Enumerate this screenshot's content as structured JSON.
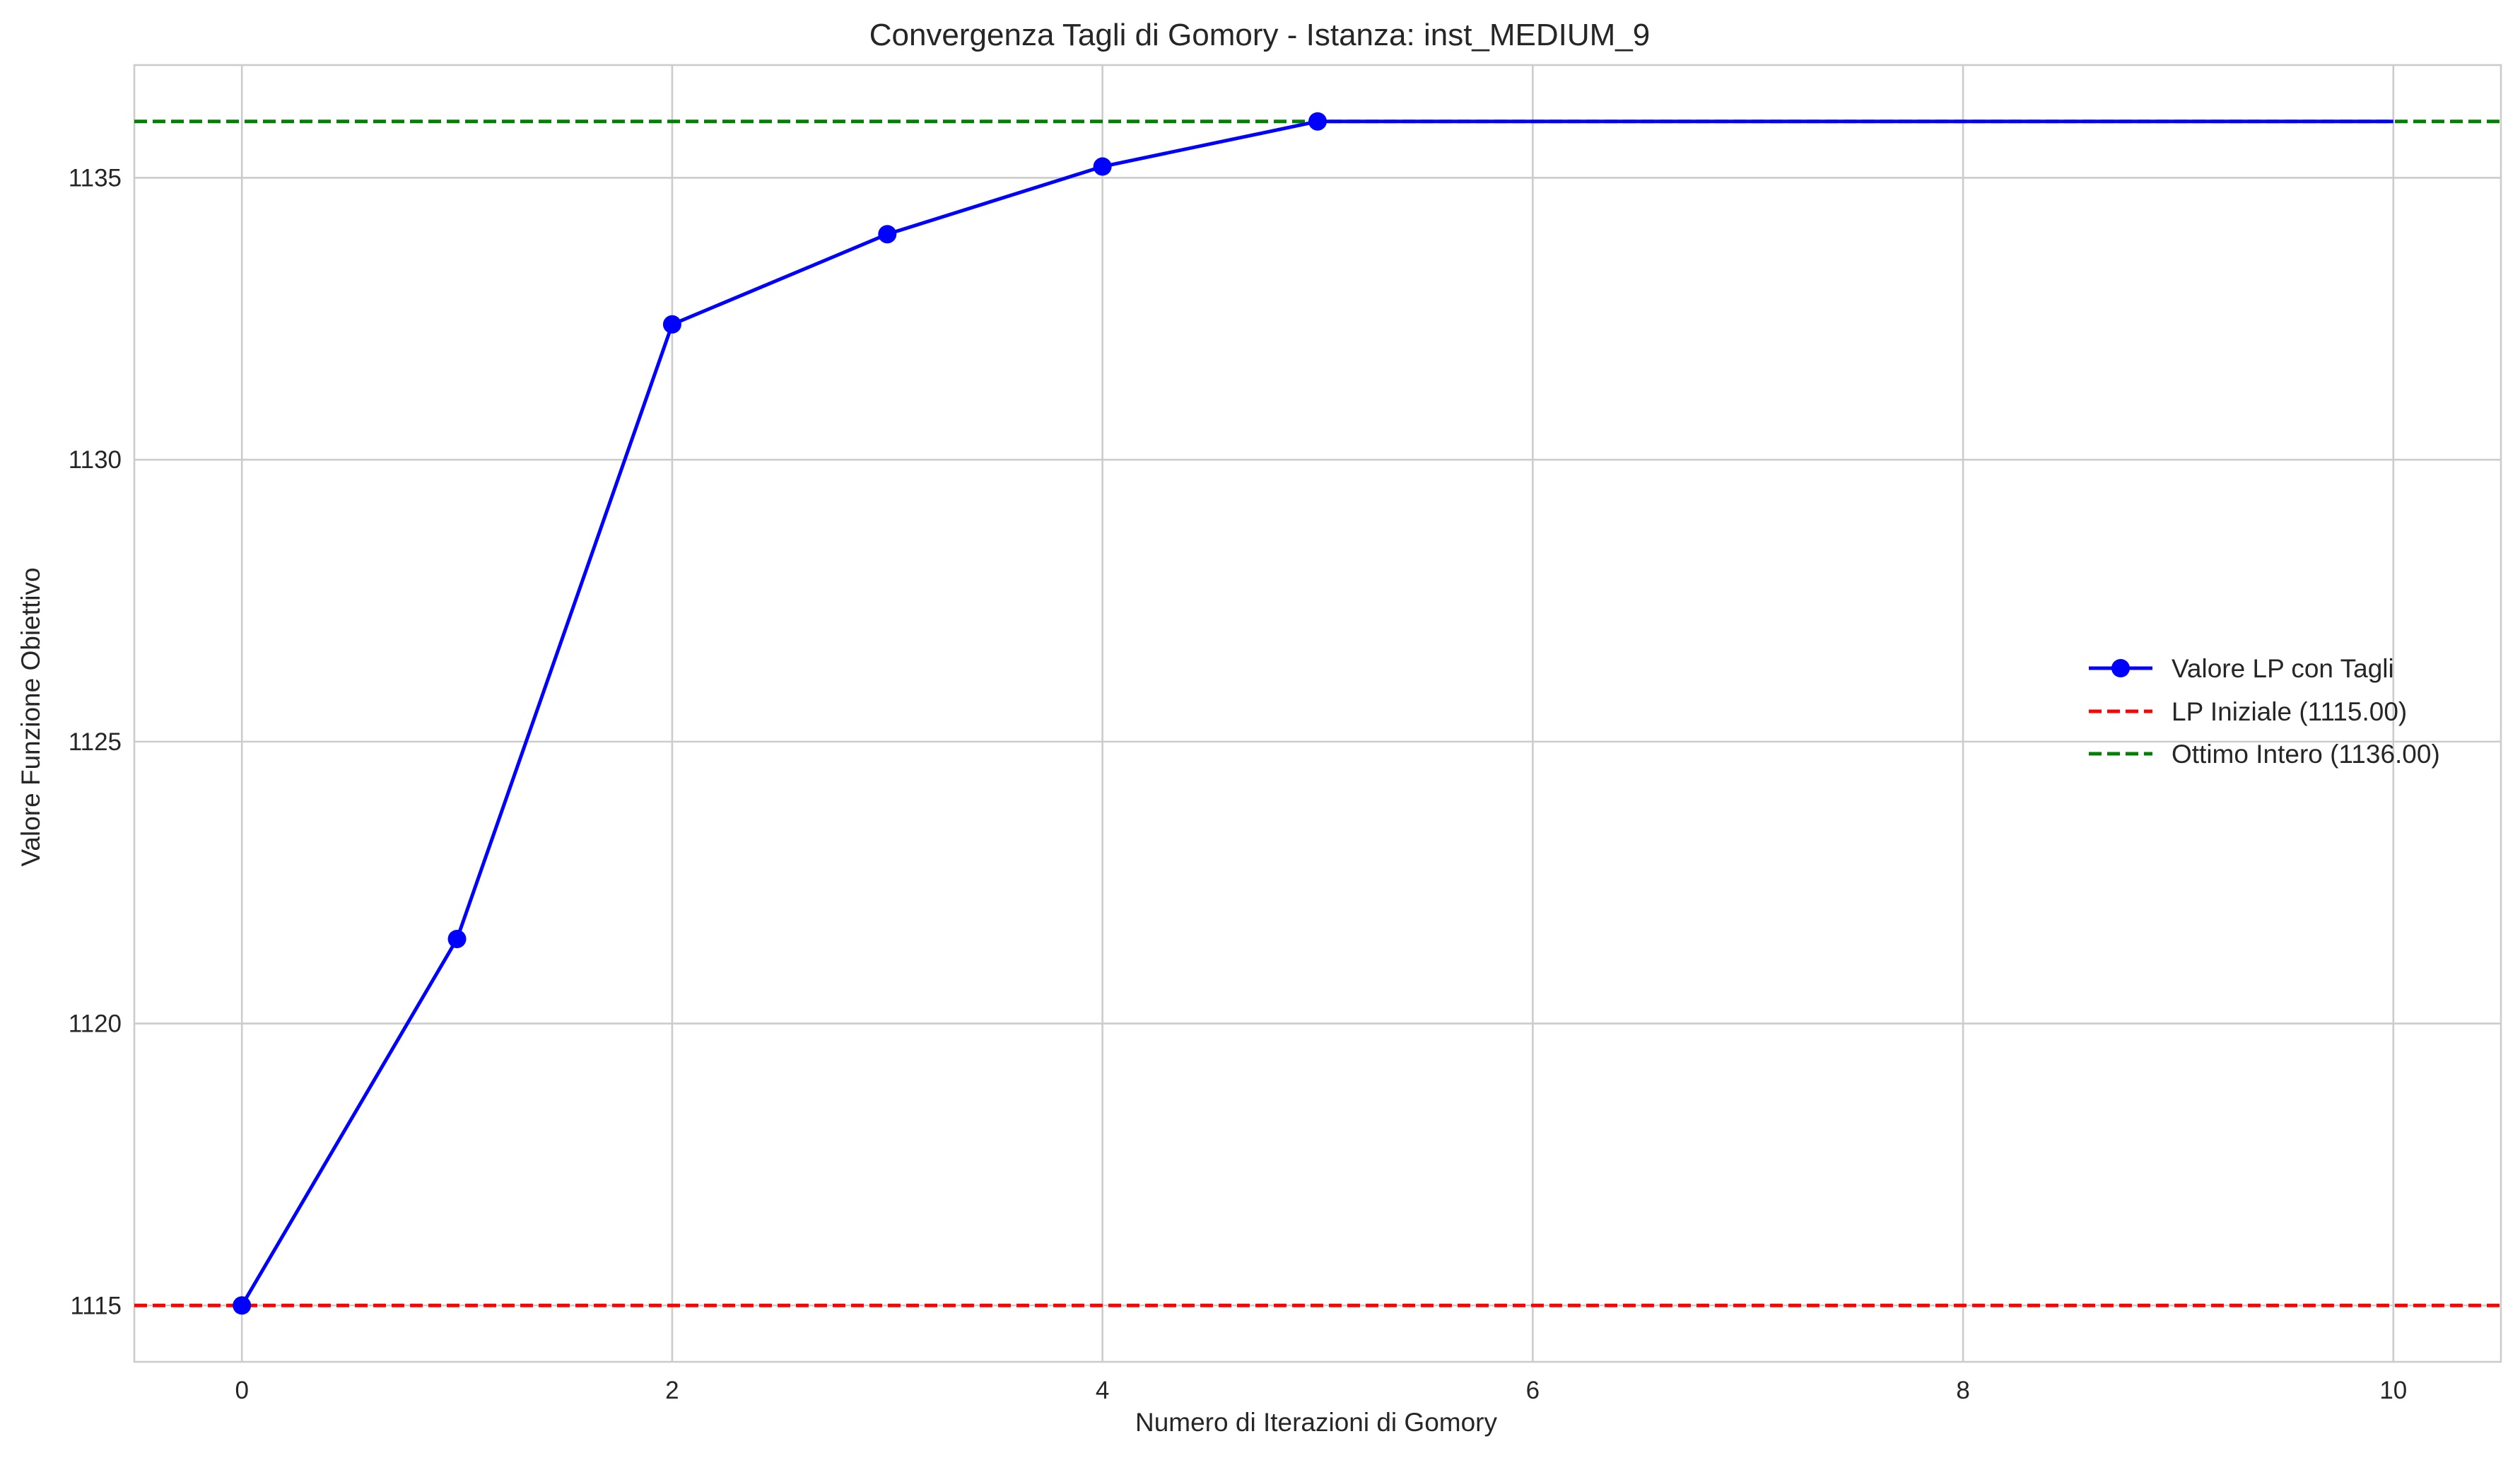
{
  "chart_data": {
    "type": "line",
    "title": "Convergenza Tagli di Gomory - Istanza: inst_MEDIUM_9",
    "xlabel": "Numero di Iterazioni di Gomory",
    "ylabel": "Valore Funzione Obiettivo",
    "xlim": [
      -0.5,
      10.5
    ],
    "ylim": [
      1114.0,
      1137.0
    ],
    "xticks": [
      0,
      2,
      4,
      6,
      8,
      10
    ],
    "yticks": [
      1115,
      1120,
      1125,
      1130,
      1135
    ],
    "grid": true,
    "legend_position": "center-right",
    "series": [
      {
        "name": "Valore LP con Tagli",
        "color": "#0000ff",
        "style": "solid",
        "marker": "circle",
        "x": [
          0,
          1,
          2,
          3,
          4,
          5,
          6,
          7,
          8,
          9,
          10
        ],
        "y": [
          1115.0,
          1121.5,
          1132.4,
          1134.0,
          1135.2,
          1136.0,
          1136.0,
          1136.0,
          1136.0,
          1136.0,
          1136.0
        ],
        "markers_shown_through_x": 5
      }
    ],
    "reference_lines": [
      {
        "name": "LP Iniziale (1115.00)",
        "y": 1115.0,
        "color": "#ff0000",
        "style": "dashed"
      },
      {
        "name": "Ottimo Intero (1136.00)",
        "y": 1136.0,
        "color": "#008000",
        "style": "dashed"
      }
    ]
  }
}
